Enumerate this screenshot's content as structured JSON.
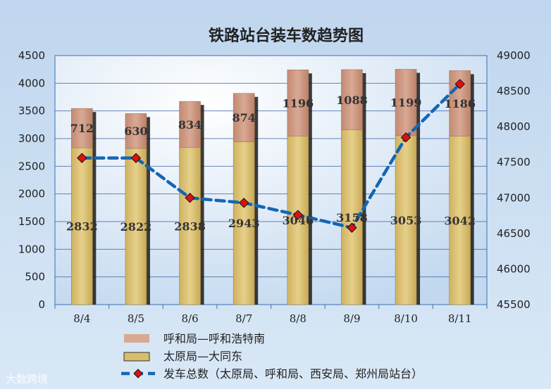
{
  "chart_data": {
    "type": "bar",
    "title": "铁路站台装车数趋势图",
    "categories": [
      "8/4",
      "8/5",
      "8/6",
      "8/7",
      "8/8",
      "8/9",
      "8/10",
      "8/11"
    ],
    "series": [
      {
        "name": "太原局—大同东",
        "kind": "stacked-bar",
        "axis": "left",
        "values": [
          2832,
          2822,
          2838,
          2943,
          3046,
          3158,
          3053,
          3042
        ],
        "labels": [
          "2832",
          "2822",
          "2838",
          "2943",
          "3046",
          "3158",
          "3053",
          "3042"
        ],
        "color": "#D8BE6C"
      },
      {
        "name": "呼和局—呼和浩特南",
        "kind": "stacked-bar",
        "axis": "left",
        "values": [
          712,
          630,
          834,
          874,
          1196,
          1088,
          1199,
          1186
        ],
        "labels": [
          "712",
          "630",
          "834",
          "874",
          "1196",
          "1088",
          "1199",
          "1186"
        ],
        "color": "#C9957F"
      },
      {
        "name": "发车总数（太原局、呼和局、西安局、郑州局站台）",
        "kind": "line",
        "axis": "right",
        "values": [
          47560,
          47560,
          47000,
          46930,
          46760,
          46580,
          47850,
          48600
        ],
        "color": "#1466B4",
        "marker_color": "#E01010"
      }
    ],
    "y_left": {
      "min": 0,
      "max": 4500,
      "step": 500,
      "ticks": [
        "0",
        "500",
        "1000",
        "1500",
        "2000",
        "2500",
        "3000",
        "3500",
        "4000",
        "4500"
      ]
    },
    "y_right": {
      "min": 45500,
      "max": 49000,
      "step": 500,
      "ticks": [
        "45500",
        "46000",
        "46500",
        "47000",
        "47500",
        "48000",
        "48500",
        "49000"
      ]
    },
    "legend_position": "bottom",
    "legend": [
      "呼和局—呼和浩特南",
      "太原局—大同东",
      "发车总数（太原局、呼和局、西安局、郑州局站台）"
    ],
    "grid": true
  },
  "watermark": "大数跨境",
  "colors": {
    "frame_bg": "#CFE0F1",
    "plot_bg": "#E9F2FB",
    "line": "#1466B4",
    "marker": "#E01010"
  }
}
